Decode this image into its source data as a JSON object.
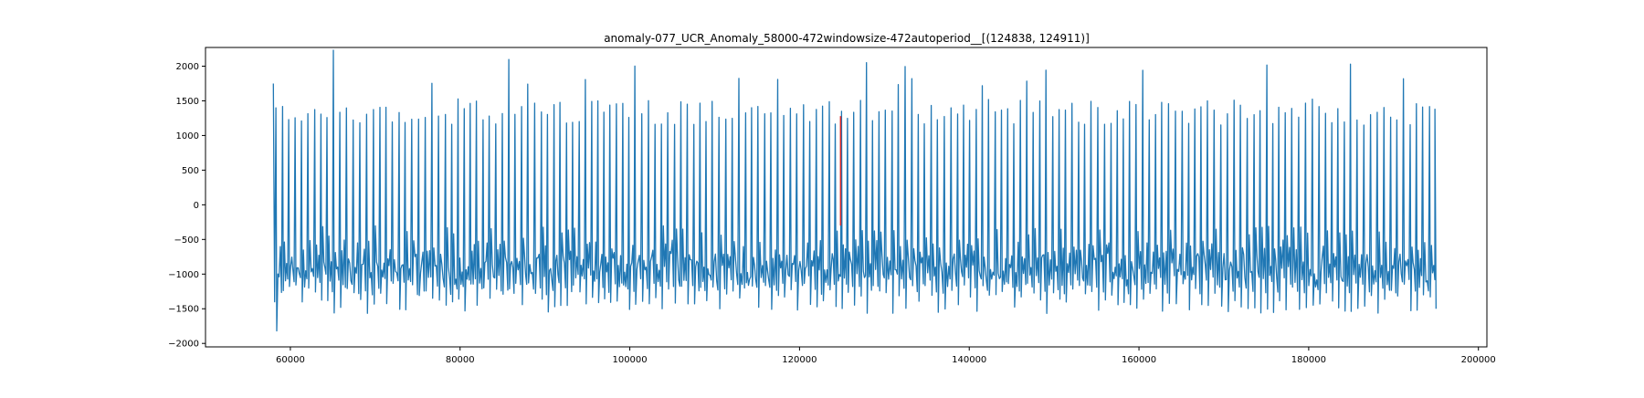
{
  "chart_data": {
    "type": "line",
    "title": "anomaly-077_UCR_Anomaly_58000-472windowsize-472autoperiod__[(124838, 124911)]",
    "xlabel": "",
    "ylabel": "",
    "xlim": [
      50000,
      201000
    ],
    "ylim": [
      -2050,
      2270
    ],
    "x_ticks": [
      60000,
      80000,
      100000,
      120000,
      140000,
      160000,
      180000,
      200000
    ],
    "x_tick_labels": [
      "60000",
      "80000",
      "100000",
      "120000",
      "140000",
      "160000",
      "180000",
      "200000"
    ],
    "y_ticks": [
      -2000,
      -1500,
      -1000,
      -500,
      0,
      500,
      1000,
      1500,
      2000
    ],
    "y_tick_labels": [
      "−2000",
      "−1500",
      "−1000",
      "−500",
      "0",
      "500",
      "1000",
      "1500",
      "2000"
    ],
    "grid": false,
    "series": [
      {
        "color": "#1f77b4",
        "x_start": 58000,
        "x_end": 195000,
        "approx_period": 760,
        "peak_high_range": [
          1150,
          2230
        ],
        "trough_low_range": [
          -1820,
          -1150
        ],
        "description_values": {
          "max": 2230,
          "max_at_x": 64800,
          "min": -1820,
          "min_at_x": 58600
        }
      },
      {
        "name": "anomaly",
        "color": "#d62728",
        "x": [
          124838,
          124911
        ],
        "y_range": [
          -300,
          1280
        ]
      }
    ]
  }
}
